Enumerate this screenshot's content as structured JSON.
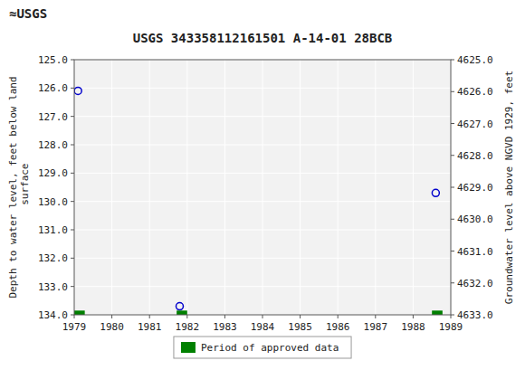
{
  "chart_data": {
    "type": "scatter",
    "title": "USGS 343358112161501 A-14-01 28BCB",
    "annotations": [
      "≈USGS"
    ],
    "y_label": "Depth to water level, feet below land\n surface",
    "y2_label": "Groundwater level above NGVD 1929, feet",
    "xlim": [
      1979,
      1989
    ],
    "xticks": [
      1979,
      1980,
      1981,
      1982,
      1983,
      1984,
      1985,
      1986,
      1987,
      1988,
      1989
    ],
    "ylim": [
      134.0,
      125.0
    ],
    "yticks": [
      {
        "value": 125.0,
        "label": "125.0"
      },
      {
        "value": 126.0,
        "label": "126.0"
      },
      {
        "value": 127.0,
        "label": "127.0"
      },
      {
        "value": 128.0,
        "label": "128.0"
      },
      {
        "value": 129.0,
        "label": "129.0"
      },
      {
        "value": 130.0,
        "label": "130.0"
      },
      {
        "value": 131.0,
        "label": "131.0"
      },
      {
        "value": 132.0,
        "label": "132.0"
      },
      {
        "value": 133.0,
        "label": "133.0"
      },
      {
        "value": 134.0,
        "label": "134.0"
      }
    ],
    "y2lim": [
      4633.0,
      4625.0
    ],
    "y2ticks": [
      {
        "value": 4633.0,
        "label": "4633.0"
      },
      {
        "value": 4632.0,
        "label": "4632.0"
      },
      {
        "value": 4631.0,
        "label": "4631.0"
      },
      {
        "value": 4630.0,
        "label": "4630.0"
      },
      {
        "value": 4629.0,
        "label": "4629.0"
      },
      {
        "value": 4628.0,
        "label": "4628.0"
      },
      {
        "value": 4627.0,
        "label": "4627.0"
      },
      {
        "value": 4626.0,
        "label": "4626.0"
      },
      {
        "value": 4625.0,
        "label": "4625.0"
      }
    ],
    "grid": true,
    "legend": "bottom",
    "series": [
      {
        "type": "scatter",
        "color": "#0000cc",
        "marker": "circle",
        "x": [
          1979.1,
          1981.8,
          1988.6
        ],
        "values": [
          126.1,
          133.7,
          129.7
        ]
      },
      {
        "name": "Period of approved data",
        "type": "span",
        "color": "#008000",
        "x_start": [
          1979.0,
          1981.72,
          1988.5
        ],
        "x_end": [
          1979.28,
          1982.0,
          1988.78
        ],
        "y_bottom": [
          133.85,
          133.85,
          133.85
        ],
        "y_top": [
          134.0,
          134.0,
          134.0
        ]
      }
    ]
  }
}
